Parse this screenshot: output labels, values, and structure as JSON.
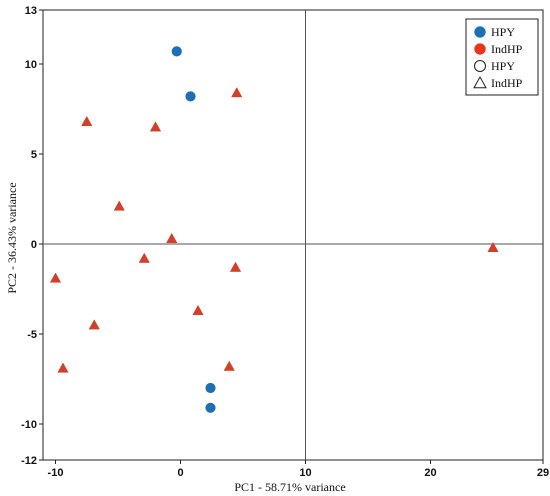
{
  "chart_data": {
    "type": "scatter",
    "title": "",
    "xlabel": "PC1 - 58.71%  variance",
    "ylabel": "PC2  -  36.43% variance",
    "xlim": [
      -11,
      29
    ],
    "ylim": [
      -12,
      13
    ],
    "xticks": [
      -10,
      0,
      10,
      20,
      29
    ],
    "yticks": [
      13,
      10,
      5,
      0,
      -5,
      -10,
      -12
    ],
    "reference_lines": {
      "x": 10,
      "y": 0
    },
    "grid": false,
    "legend_position": "top-right",
    "legend": [
      {
        "label": "HPY",
        "marker": "circle",
        "filled": true,
        "color": "#1f6fb5"
      },
      {
        "label": "IndHP",
        "marker": "circle",
        "filled": true,
        "color": "#e8341c"
      },
      {
        "label": "HPY",
        "marker": "circle",
        "filled": false,
        "color": "#222222"
      },
      {
        "label": "IndHP",
        "marker": "triangle",
        "filled": false,
        "color": "#222222"
      }
    ],
    "series": [
      {
        "name": "HPY",
        "marker": "circle",
        "color": "#1f6fb5",
        "points": [
          [
            -0.3,
            10.7
          ],
          [
            0.8,
            8.2
          ],
          [
            2.4,
            -8.0
          ],
          [
            2.4,
            -9.1
          ]
        ]
      },
      {
        "name": "IndHP",
        "marker": "triangle",
        "color": "#d2402a",
        "points": [
          [
            -7.5,
            6.8
          ],
          [
            -2.0,
            6.5
          ],
          [
            4.5,
            8.4
          ],
          [
            -4.9,
            2.1
          ],
          [
            -0.7,
            0.3
          ],
          [
            -2.9,
            -0.8
          ],
          [
            -10.0,
            -1.9
          ],
          [
            4.4,
            -1.3
          ],
          [
            -6.9,
            -4.5
          ],
          [
            1.4,
            -3.7
          ],
          [
            -9.4,
            -6.9
          ],
          [
            3.9,
            -6.8
          ],
          [
            25.0,
            -0.2
          ]
        ]
      }
    ]
  }
}
